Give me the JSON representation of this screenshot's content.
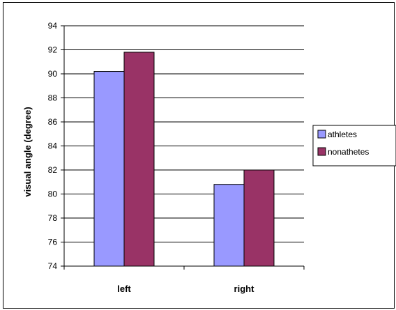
{
  "chart_data": {
    "type": "bar",
    "categories": [
      "left",
      "right"
    ],
    "series": [
      {
        "name": "athletes",
        "values": [
          90.2,
          80.8
        ],
        "color": "#9999ff"
      },
      {
        "name": "nonathetes",
        "values": [
          91.8,
          82.0
        ],
        "color": "#993366"
      }
    ],
    "xlabel": "",
    "ylabel": "visual angle (degree)",
    "ylim": [
      74,
      94
    ],
    "yticks": [
      74,
      76,
      78,
      80,
      82,
      84,
      86,
      88,
      90,
      92,
      94
    ],
    "grid": true,
    "legend_position": "right"
  }
}
